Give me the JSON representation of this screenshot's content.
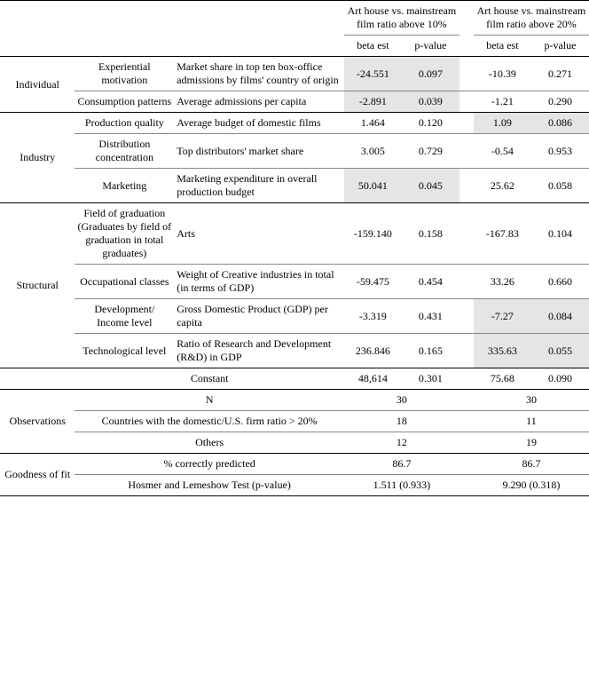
{
  "header": {
    "group1": "Art house vs. mainstream film ratio above 10%",
    "group2": "Art house vs. mainstream film ratio above 20%",
    "beta": "beta est",
    "pval": "p-value"
  },
  "sections": {
    "individual": {
      "label": "Individual",
      "rows": [
        {
          "sub": "Experiential motivation",
          "desc": "Market share in top ten box-office admissions by films' country of origin",
          "b1": "-24.551",
          "p1": "0.097",
          "b2": "-10.39",
          "p2": "0.271",
          "hl": "g1"
        },
        {
          "sub": "Consumption patterns",
          "desc": "Average admissions per capita",
          "b1": "-2.891",
          "p1": "0.039",
          "b2": "-1.21",
          "p2": "0.290",
          "hl": "g1"
        }
      ]
    },
    "industry": {
      "label": "Industry",
      "rows": [
        {
          "sub": "Production quality",
          "desc": "Average budget of domestic films",
          "b1": "1.464",
          "p1": "0.120",
          "b2": "1.09",
          "p2": "0.086",
          "hl": "g2"
        },
        {
          "sub": "Distribution concentration",
          "desc": "Top distributors' market share",
          "b1": "3.005",
          "p1": "0.729",
          "b2": "-0.54",
          "p2": "0.953",
          "hl": "none"
        },
        {
          "sub": "Marketing",
          "desc": "Marketing expenditure in overall production budget",
          "b1": "50.041",
          "p1": "0.045",
          "b2": "25.62",
          "p2": "0.058",
          "hl": "g1"
        }
      ]
    },
    "structural": {
      "label": "Structural",
      "rows": [
        {
          "sub": "Field of graduation (Graduates by field of graduation in total graduates)",
          "desc": "Arts",
          "b1": "-159.140",
          "p1": "0.158",
          "b2": "-167.83",
          "p2": "0.104",
          "hl": "none"
        },
        {
          "sub": "Occupational classes",
          "desc": "Weight of Creative industries in total (in terms of GDP)",
          "b1": "-59.475",
          "p1": "0.454",
          "b2": "33.26",
          "p2": "0.660",
          "hl": "none"
        },
        {
          "sub": "Development/ Income level",
          "desc": "Gross Domestic Product (GDP) per capita",
          "b1": "-3.319",
          "p1": "0.431",
          "b2": "-7.27",
          "p2": "0.084",
          "hl": "g2"
        },
        {
          "sub": "Technological level",
          "desc": "Ratio of Research and Development (R&D) in GDP",
          "b1": "236.846",
          "p1": "0.165",
          "b2": "335.63",
          "p2": "0.055",
          "hl": "g2"
        }
      ]
    },
    "constant": {
      "label": "Constant",
      "b1": "48,614",
      "p1": "0.301",
      "b2": "75.68",
      "p2": "0.090"
    },
    "observations": {
      "label": "Observations",
      "rows": [
        {
          "desc": "N",
          "v1": "30",
          "v2": "30"
        },
        {
          "desc": "Countries with the domestic/U.S. firm ratio > 20%",
          "v1": "18",
          "v2": "11"
        },
        {
          "desc": "Others",
          "v1": "12",
          "v2": "19"
        }
      ]
    },
    "goodness": {
      "label": "Goodness of fit",
      "rows": [
        {
          "desc": "% correctly predicted",
          "v1": "86.7",
          "v2": "86.7"
        },
        {
          "desc": "Hosmer and Lemeshow Test (p-value)",
          "v1": "1.511 (0.933)",
          "v2": "9.290 (0.318)"
        }
      ]
    }
  }
}
